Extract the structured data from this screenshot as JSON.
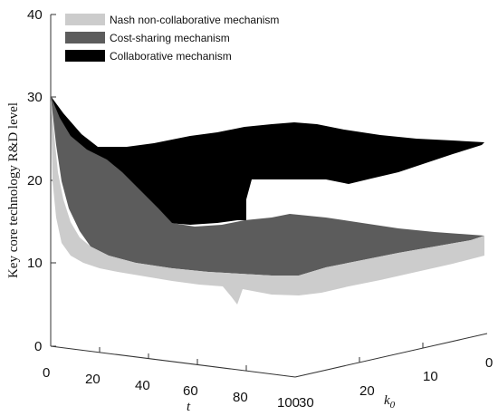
{
  "chart_data": {
    "type": "surface3d",
    "title": "",
    "zlabel": "Key core technology R&D level",
    "xlabel": "t",
    "ylabel": "k",
    "ylabel_subscript": "0",
    "z_ticks": [
      "0",
      "10",
      "20",
      "30",
      "40"
    ],
    "t_ticks": [
      "0",
      "20",
      "40",
      "60",
      "80",
      "100"
    ],
    "k_ticks": [
      "30",
      "20",
      "10",
      "0"
    ],
    "zlim": [
      0,
      40
    ],
    "tlim": [
      0,
      100
    ],
    "klim": [
      0,
      30
    ],
    "legend_position": "top-left",
    "legend": [
      {
        "label": "Nash non-collaborative mechanism",
        "color": "#cccccc"
      },
      {
        "label": "Cost-sharing mechanism",
        "color": "#5c5c5c"
      },
      {
        "label": "Collaborative mechanism",
        "color": "#000000"
      }
    ],
    "series": [
      {
        "name": "Nash non-collaborative mechanism",
        "color": "#cccccc",
        "edge_t0": [
          [
            30,
            30
          ],
          [
            0,
            11
          ]
        ],
        "edge_k0": [
          [
            0,
            11
          ],
          [
            100,
            10.8
          ]
        ],
        "edge_k30": [
          [
            0,
            30
          ],
          [
            10,
            15
          ],
          [
            30,
            11.5
          ],
          [
            50,
            10.2
          ],
          [
            80,
            9.8
          ],
          [
            100,
            9.5
          ]
        ],
        "edge_t100": [
          [
            30,
            9.5
          ],
          [
            0,
            10.8
          ]
        ]
      },
      {
        "name": "Cost-sharing mechanism",
        "color": "#5c5c5c",
        "edge_t0": [
          [
            30,
            30
          ],
          [
            0,
            13
          ]
        ],
        "edge_k0": [
          [
            0,
            13
          ],
          [
            100,
            13
          ]
        ],
        "edge_k30": [
          [
            0,
            30
          ],
          [
            10,
            17
          ],
          [
            30,
            13.2
          ],
          [
            60,
            12.3
          ],
          [
            100,
            12
          ]
        ],
        "edge_t100": [
          [
            30,
            12
          ],
          [
            0,
            13
          ]
        ]
      },
      {
        "name": "Collaborative mechanism",
        "color": "#000000",
        "edge_t0": [
          [
            30,
            30
          ],
          [
            0,
            24.5
          ]
        ],
        "edge_k0": [
          [
            0,
            24.5
          ],
          [
            100,
            24.5
          ]
        ],
        "edge_k30": [
          [
            0,
            30
          ],
          [
            20,
            25
          ],
          [
            50,
            18
          ],
          [
            80,
            18
          ],
          [
            100,
            23.8
          ]
        ],
        "edge_t100": [
          [
            30,
            23.8
          ],
          [
            0,
            24.5
          ]
        ]
      }
    ]
  }
}
